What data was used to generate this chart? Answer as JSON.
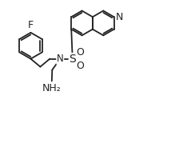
{
  "background": "#ffffff",
  "line_color": "#222222",
  "line_width": 1.3,
  "font_size": 8.5,
  "figsize": [
    2.3,
    1.84
  ],
  "dpi": 100,
  "xlim": [
    0,
    23
  ],
  "ylim": [
    0,
    18
  ]
}
